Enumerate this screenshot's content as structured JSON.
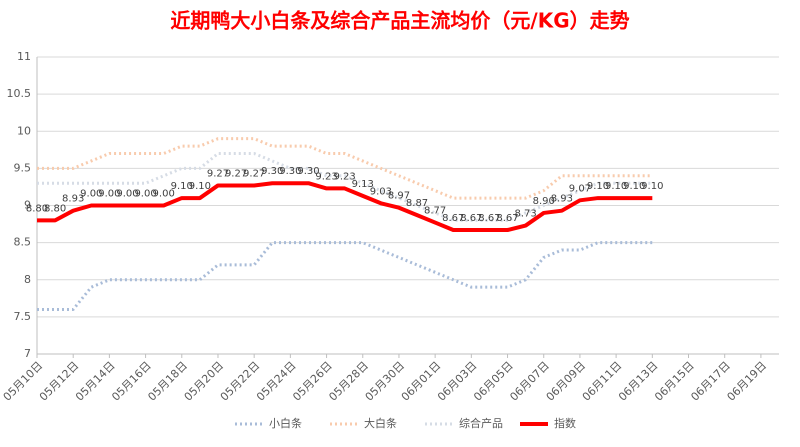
{
  "chart_data": {
    "type": "line",
    "title": "近期鸭大小白条及综合产品主流均价（元/KG）走势",
    "categories": [
      "05月10日",
      null,
      "05月12日",
      null,
      "05月14日",
      null,
      "05月16日",
      null,
      "05月18日",
      null,
      "05月20日",
      null,
      "05月22日",
      null,
      "05月24日",
      null,
      "05月26日",
      null,
      "05月28日",
      null,
      "05月30日",
      null,
      "06月01日",
      null,
      "06月03日",
      null,
      "06月05日",
      null,
      "06月07日",
      null,
      "06月09日",
      null,
      "06月11日",
      null,
      "06月13日",
      null,
      "06月15日",
      null,
      "06月17日",
      null,
      "06月19日",
      null
    ],
    "series": [
      {
        "name": "小白条",
        "color": "#a9bcd8",
        "values": [
          7.6,
          7.6,
          7.6,
          7.9,
          8.0,
          8.0,
          8.0,
          8.0,
          8.0,
          8.0,
          8.2,
          8.2,
          8.2,
          8.5,
          8.5,
          8.5,
          8.5,
          8.5,
          8.5,
          8.4,
          8.3,
          8.2,
          8.1,
          8.0,
          7.9,
          7.9,
          7.9,
          8.0,
          8.3,
          8.4,
          8.4,
          8.5,
          8.5,
          8.5,
          8.5,
          null,
          null,
          null,
          null,
          null,
          null,
          null
        ]
      },
      {
        "name": "大白条",
        "color": "#f8cbad",
        "values": [
          9.5,
          9.5,
          9.5,
          9.6,
          9.7,
          9.7,
          9.7,
          9.7,
          9.8,
          9.8,
          9.9,
          9.9,
          9.9,
          9.8,
          9.8,
          9.8,
          9.7,
          9.7,
          9.6,
          9.5,
          9.4,
          9.3,
          9.2,
          9.1,
          9.1,
          9.1,
          9.1,
          9.1,
          9.2,
          9.4,
          9.4,
          9.4,
          9.4,
          9.4,
          9.4,
          null,
          null,
          null,
          null,
          null,
          null,
          null
        ]
      },
      {
        "name": "综合产品",
        "color": "#d6dce5",
        "values": [
          9.3,
          9.3,
          9.3,
          9.3,
          9.3,
          9.3,
          9.3,
          9.4,
          9.5,
          9.5,
          9.7,
          9.7,
          9.7,
          9.6,
          9.5,
          9.5,
          9.4,
          9.4,
          9.3,
          9.2,
          9.1,
          9.0,
          8.9,
          8.8,
          8.8,
          8.8,
          8.8,
          8.9,
          9.0,
          9.1,
          9.2,
          9.3,
          9.3,
          9.3,
          9.3,
          null,
          null,
          null,
          null,
          null,
          null,
          null
        ]
      },
      {
        "name": "指数",
        "color": "#ff0000",
        "values": [
          8.8,
          8.8,
          8.93,
          9,
          9,
          9,
          9,
          9,
          9.1,
          9.1,
          9.27,
          9.27,
          9.27,
          9.3,
          9.3,
          9.3,
          9.23,
          9.23,
          9.13,
          9.03,
          8.97,
          8.87,
          8.77,
          8.67,
          8.67,
          8.67,
          8.67,
          8.73,
          8.9,
          8.93,
          9.07,
          9.1,
          9.1,
          9.1,
          9.1,
          null,
          null,
          null,
          null,
          null,
          null,
          null
        ],
        "value_labels": [
          "8.80",
          "8.80",
          "8.93",
          "9.00",
          "9.00",
          "9.00",
          "9.00",
          "9.00",
          "9.10",
          "9.10",
          "9.27",
          "9.27",
          "9.27",
          "9.30",
          "9.30",
          "9.30",
          "9.23",
          "9.23",
          "9.13",
          "9.03",
          "8.97",
          "8.87",
          "8.77",
          "8.67",
          "8.67",
          "8.67",
          "8.67",
          "8.73",
          "8.90",
          "8.93",
          "9.07",
          "9.10",
          "9.10",
          "9.10",
          "9.10",
          null,
          null,
          null,
          null,
          null,
          null,
          null
        ]
      }
    ],
    "ylim": [
      7,
      11
    ],
    "yticks": [
      7,
      7.5,
      8,
      8.5,
      9,
      9.5,
      10,
      10.5,
      11
    ],
    "grid": true
  }
}
